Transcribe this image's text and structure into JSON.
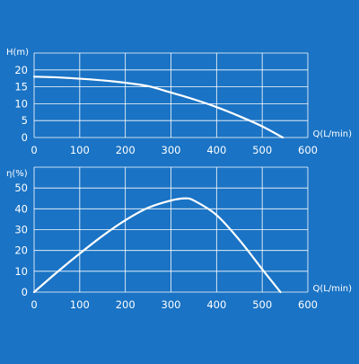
{
  "colors": {
    "background": "#1a73c4",
    "line": "#ffffff",
    "grid": "#ffffff"
  },
  "chart_data": [
    {
      "type": "line",
      "ylabel": "H(m)",
      "xlabel": "Q(L/min)",
      "xlim": [
        0,
        600
      ],
      "ylim": [
        0,
        25
      ],
      "xticks": [
        0,
        100,
        200,
        300,
        400,
        500,
        600
      ],
      "yticks": [
        0,
        5,
        10,
        15,
        20,
        25
      ],
      "ytick_labels": [
        "0",
        "5",
        "10",
        "15",
        "20",
        ""
      ],
      "grid": true,
      "series": [
        {
          "x": [
            0,
            50,
            100,
            150,
            200,
            250,
            300,
            350,
            400,
            450,
            500,
            545
          ],
          "y": [
            18,
            17.8,
            17.4,
            16.9,
            16.2,
            15.2,
            13.3,
            11.3,
            9.0,
            6.3,
            3.3,
            0
          ]
        }
      ]
    },
    {
      "type": "line",
      "ylabel": "η(%)",
      "xlabel": "Q(L/min)",
      "xlim": [
        0,
        600
      ],
      "ylim": [
        0,
        60
      ],
      "xticks": [
        0,
        100,
        200,
        300,
        400,
        500,
        600
      ],
      "yticks": [
        0,
        10,
        20,
        30,
        40,
        50,
        60
      ],
      "ytick_labels": [
        "0",
        "10",
        "20",
        "30",
        "40",
        "50",
        ""
      ],
      "grid": true,
      "series": [
        {
          "x": [
            0,
            50,
            100,
            150,
            200,
            250,
            300,
            330,
            350,
            400,
            450,
            500,
            540
          ],
          "y": [
            0,
            9.5,
            18.5,
            27,
            34.5,
            40.5,
            44,
            45,
            44,
            37,
            25,
            11,
            0
          ]
        }
      ]
    }
  ]
}
